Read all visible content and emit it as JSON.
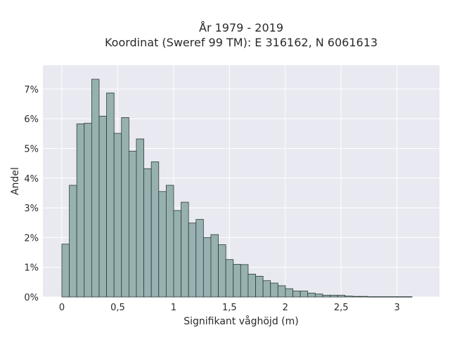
{
  "chart_data": {
    "type": "bar",
    "title_line1": "År 1979 - 2019",
    "title_line2": "Koordinat (Sweref 99 TM): E 316162, N 6061613",
    "xlabel": "Signifikant våghöjd (m)",
    "ylabel": "Andel",
    "xlim": [
      -0.17,
      3.38
    ],
    "ylim": [
      0,
      7.8
    ],
    "x_ticks": [
      0,
      0.5,
      1,
      1.5,
      2,
      2.5,
      3
    ],
    "x_tick_labels": [
      "0",
      "0,5",
      "1",
      "1,5",
      "2",
      "2,5",
      "3"
    ],
    "y_ticks": [
      0,
      1,
      2,
      3,
      4,
      5,
      6,
      7
    ],
    "y_tick_labels": [
      "0%",
      "1%",
      "2%",
      "3%",
      "4%",
      "5%",
      "6%",
      "7%"
    ],
    "bin_width": 0.0667,
    "bins_start": 0,
    "values": [
      1.78,
      3.76,
      5.83,
      5.85,
      7.33,
      6.09,
      6.87,
      5.51,
      6.04,
      4.91,
      5.32,
      4.32,
      4.55,
      3.55,
      3.76,
      2.91,
      3.19,
      2.49,
      2.61,
      2.0,
      2.1,
      1.76,
      1.26,
      1.1,
      1.09,
      0.77,
      0.7,
      0.55,
      0.47,
      0.38,
      0.28,
      0.2,
      0.2,
      0.13,
      0.1,
      0.06,
      0.06,
      0.06,
      0.03,
      0.02,
      0.02,
      0.01,
      0.01,
      0.01,
      0.01,
      0.01,
      0.01
    ],
    "grid": true,
    "colors": {
      "bar_fill": "#97b1b0",
      "bar_edge": "#2f3a3a",
      "plot_bg": "#e9e9f1",
      "grid": "#ffffff"
    }
  }
}
